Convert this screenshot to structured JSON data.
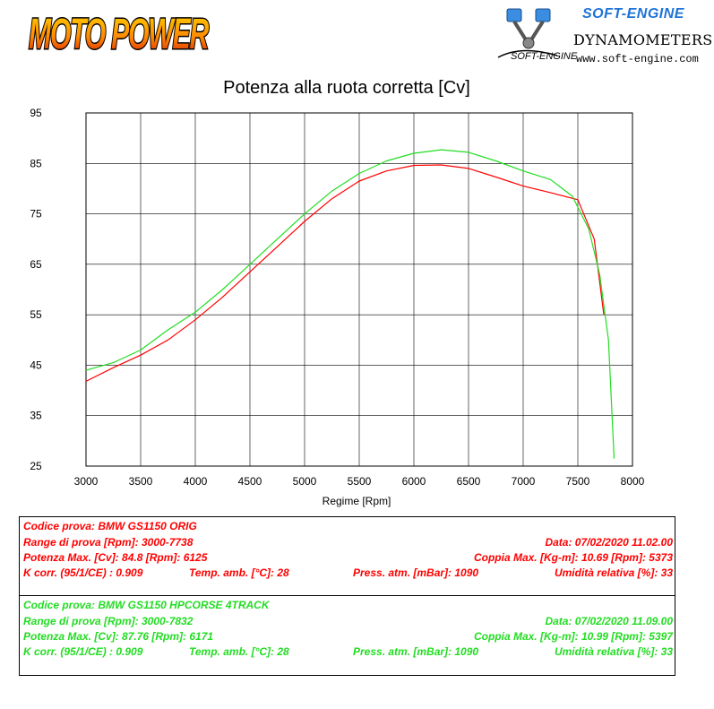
{
  "header": {
    "logo_left": "MOTO POWER",
    "logo_right_title": "SOFT-ENGINE",
    "logo_right_subtitle": "DYNAMOMETERS",
    "logo_right_brand": "SOFT-ENGINE",
    "logo_right_url": "www.soft-engine.com"
  },
  "chart_data": {
    "type": "line",
    "title": "Potenza alla ruota corretta [Cv]",
    "xlabel": "Regime [Rpm]",
    "ylabel": "",
    "xlim": [
      3000,
      8000
    ],
    "ylim": [
      25,
      95
    ],
    "xticks": [
      3000,
      3500,
      4000,
      4500,
      5000,
      5500,
      6000,
      6500,
      7000,
      7500,
      8000
    ],
    "yticks": [
      25,
      35,
      45,
      55,
      65,
      75,
      85,
      95
    ],
    "grid": true,
    "series": [
      {
        "color": "#ff0000",
        "x": [
          3000,
          3250,
          3500,
          3750,
          4000,
          4250,
          4500,
          4750,
          5000,
          5250,
          5500,
          5750,
          6000,
          6250,
          6500,
          6750,
          7000,
          7250,
          7500,
          7650,
          7738
        ],
        "y": [
          41.8,
          44.5,
          47.0,
          50.0,
          54.0,
          58.5,
          63.5,
          68.5,
          73.5,
          78.0,
          81.5,
          83.5,
          84.6,
          84.7,
          84.0,
          82.3,
          80.5,
          79.2,
          77.8,
          70.0,
          55.0
        ]
      },
      {
        "color": "#22dd22",
        "x": [
          3000,
          3250,
          3500,
          3750,
          4000,
          4250,
          4500,
          4750,
          5000,
          5250,
          5500,
          5750,
          6000,
          6250,
          6500,
          6750,
          7000,
          7250,
          7450,
          7600,
          7700,
          7780,
          7832
        ],
        "y": [
          44.0,
          45.5,
          48.0,
          52.0,
          55.5,
          60.0,
          65.0,
          70.0,
          75.0,
          79.5,
          83.0,
          85.5,
          87.0,
          87.7,
          87.2,
          85.5,
          83.5,
          81.8,
          78.5,
          72.0,
          63.0,
          50.0,
          26.5
        ]
      }
    ]
  },
  "tests": [
    {
      "codice": "Codice prova: BMW GS1150 ORIG",
      "range": "Range di prova [Rpm]: 3000-7738",
      "data": "Data: 07/02/2020   11.02.00",
      "potenza": "Potenza Max. [Cv]: 84.8   [Rpm]: 6125",
      "coppia": "Coppia Max. [Kg-m]: 10.69   [Rpm]: 5373",
      "kcorr": "K corr. (95/1/CE) : 0.909",
      "temp": "Temp. amb. [°C]: 28",
      "press": "Press. atm. [mBar]: 1090",
      "umid": "Umidità relativa [%]: 33"
    },
    {
      "codice": "Codice prova: BMW GS1150 HPCORSE 4TRACK",
      "range": "Range di prova [Rpm]: 3000-7832",
      "data": "Data: 07/02/2020   11.09.00",
      "potenza": "Potenza Max. [Cv]: 87.76   [Rpm]: 6171",
      "coppia": "Coppia Max. [Kg-m]: 10.99   [Rpm]: 5397",
      "kcorr": "K corr. (95/1/CE) : 0.909",
      "temp": "Temp. amb. [°C]: 28",
      "press": "Press. atm. [mBar]: 1090",
      "umid": "Umidità relativa [%]: 33"
    }
  ]
}
